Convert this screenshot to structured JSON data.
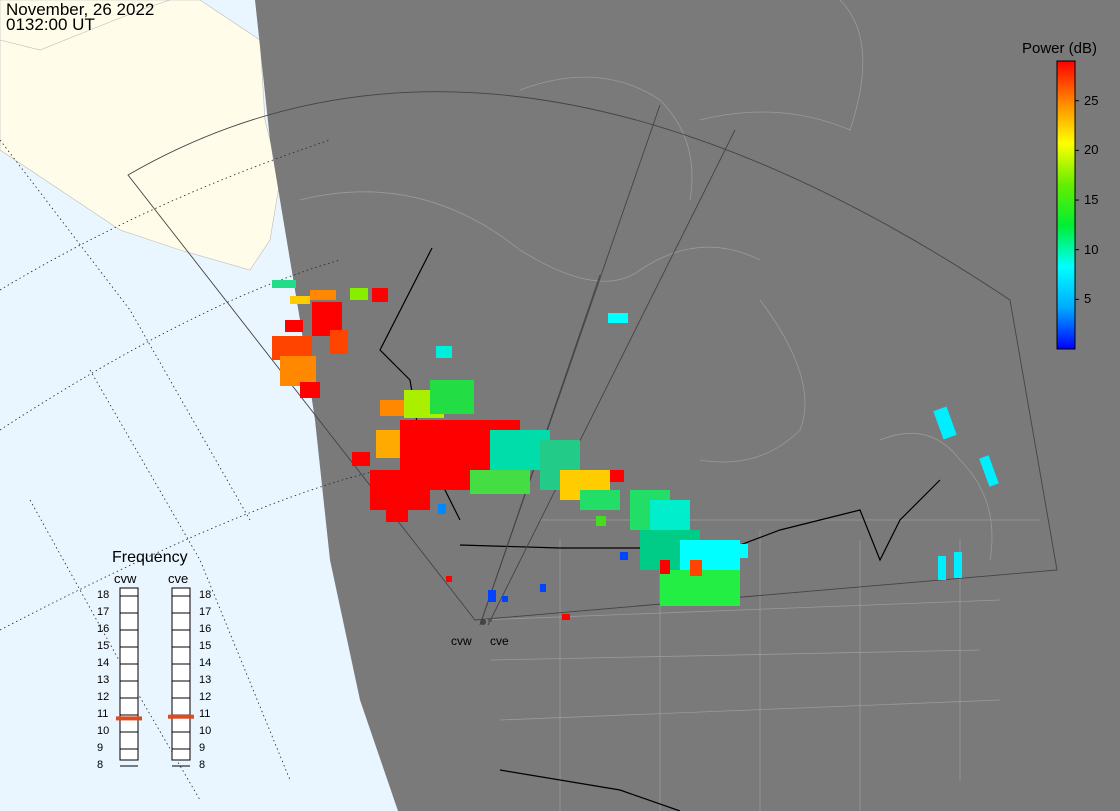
{
  "header": {
    "date": "November, 26 2022",
    "time": "0132:00 UT"
  },
  "colorbar": {
    "title": "Power (dB)",
    "min": 0,
    "max": 29,
    "ticks": [
      "5",
      "10",
      "15",
      "20",
      "25"
    ],
    "stops": [
      "#0000ff",
      "#00aaff",
      "#00ffff",
      "#00ee33",
      "#66ee00",
      "#ffff00",
      "#ff8800",
      "#ff0000"
    ]
  },
  "frequency_panel": {
    "title": "Frequency",
    "radars": [
      {
        "code": "cvw",
        "value_mhz": 10.8
      },
      {
        "code": "cve",
        "value_mhz": 10.9
      }
    ],
    "scale": [
      "18",
      "17",
      "16",
      "15",
      "14",
      "13",
      "12",
      "11",
      "10",
      "9",
      "8"
    ]
  },
  "map": {
    "sites": [
      "cvw",
      "cve"
    ],
    "colors": {
      "ocean": "#eaf6ff",
      "land_day": "#fffcea",
      "night": "#7a7a7a",
      "indicator": "#e04a20"
    }
  }
}
